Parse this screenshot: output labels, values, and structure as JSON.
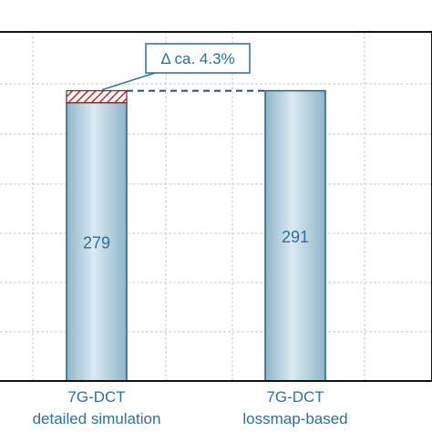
{
  "chart_data": {
    "type": "bar",
    "categories": [
      "7G-DCT\ndetailed simulation",
      "7G-DCT\nlossmap-based"
    ],
    "category_lines": [
      [
        "7G-DCT",
        "detailed simulation"
      ],
      [
        "7G-DCT",
        "lossmap-based"
      ]
    ],
    "values": [
      279,
      291
    ],
    "value_labels": [
      "279",
      "291"
    ],
    "difference": {
      "from_value": 279,
      "to_value": 291,
      "hatched_segment": true
    },
    "annotation": "Δ ca. 4.3%",
    "ylim": [
      0,
      350
    ],
    "grid": true,
    "colors": {
      "bar_fill_center": "#dbeaf2",
      "bar_fill_edge": "#8fb6ca",
      "bar_stroke": "#2a5f7a",
      "label_text": "#2f6f95",
      "hatch": "#c0292f",
      "dashed_line": "#24506a",
      "callout_border": "#2f6f95",
      "grid": "#c9c9c9"
    }
  }
}
